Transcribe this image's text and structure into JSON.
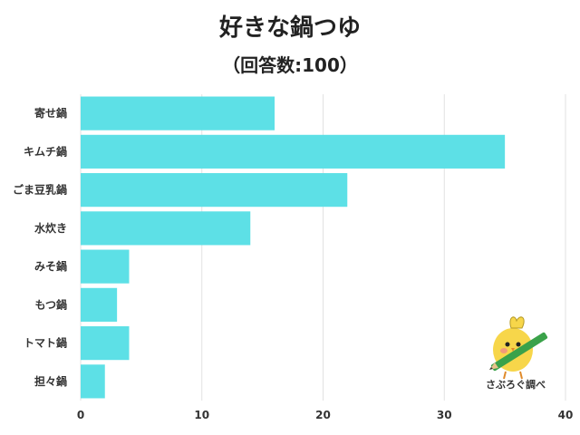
{
  "title": "好きな鍋つゆ",
  "subtitle": "（回答数:100）",
  "watermark": "さぶろぐ調べ",
  "colors": {
    "bar": "#5de0e6",
    "grid": "#e2e2e2",
    "text": "#333333"
  },
  "chart_data": {
    "type": "bar",
    "orientation": "horizontal",
    "categories": [
      "寄せ鍋",
      "キムチ鍋",
      "ごま豆乳鍋",
      "水炊き",
      "みそ鍋",
      "もつ鍋",
      "トマト鍋",
      "担々鍋"
    ],
    "values": [
      16,
      35,
      22,
      14,
      4,
      3,
      4,
      2
    ],
    "xlim": [
      0,
      40
    ],
    "xticks": [
      0,
      10,
      20,
      30,
      40
    ],
    "grid": "vertical"
  }
}
